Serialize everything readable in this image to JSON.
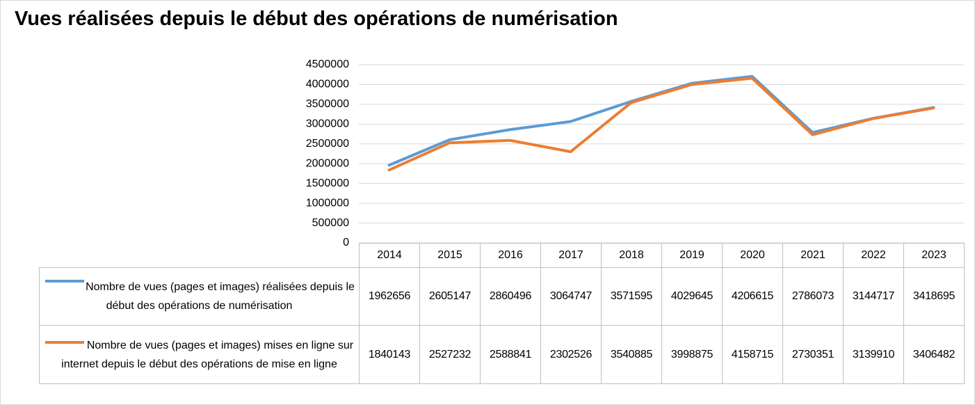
{
  "chart_data": {
    "type": "line",
    "title": "Vues réalisées depuis le début des opérations de numérisation",
    "categories": [
      "2014",
      "2015",
      "2016",
      "2017",
      "2018",
      "2019",
      "2020",
      "2021",
      "2022",
      "2023"
    ],
    "series": [
      {
        "name": "Nombre de vues (pages et images) réalisées depuis le début des opérations de numérisation",
        "color": "#5b9bd5",
        "values": [
          1962656,
          2605147,
          2860496,
          3064747,
          3571595,
          4029645,
          4206615,
          2786073,
          3144717,
          3418695
        ]
      },
      {
        "name": "Nombre de vues (pages et images) mises en ligne sur internet depuis le début des opérations de mise en ligne",
        "color": "#ed7d31",
        "values": [
          1840143,
          2527232,
          2588841,
          2302526,
          3540885,
          3998875,
          4158715,
          2730351,
          3139910,
          3406482
        ]
      }
    ],
    "ylim": [
      0,
      4500000
    ],
    "yticks": [
      0,
      500000,
      1000000,
      1500000,
      2000000,
      2500000,
      3000000,
      3500000,
      4000000,
      4500000
    ],
    "grid": true
  }
}
